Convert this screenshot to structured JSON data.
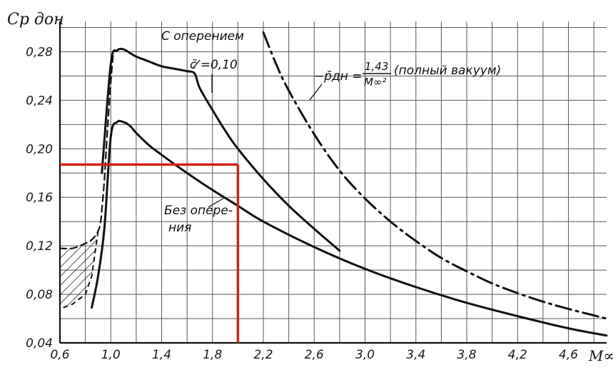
{
  "chart_data": {
    "type": "line",
    "ylabel": "Cp дон",
    "xlabel": "M∞",
    "xlim": [
      0.6,
      4.9
    ],
    "ylim": [
      0.04,
      0.305
    ],
    "grid": true,
    "x_ticks": [
      "0,6",
      "1,0",
      "1,4",
      "1,8",
      "2,2",
      "2,6",
      "3,0",
      "3,4",
      "3,8",
      "4,2",
      "4,6"
    ],
    "x_tick_values": [
      0.6,
      1.0,
      1.4,
      1.8,
      2.2,
      2.6,
      3.0,
      3.4,
      3.8,
      4.2,
      4.6
    ],
    "y_ticks": [
      "0,04",
      "0,08",
      "0,12",
      "0,16",
      "0,20",
      "0,24",
      "0,28"
    ],
    "y_tick_values": [
      0.04,
      0.08,
      0.12,
      0.16,
      0.2,
      0.24,
      0.28
    ],
    "series": [
      {
        "name": "С оперением c̄=0,10",
        "style": "solid",
        "x": [
          0.93,
          1.0,
          1.05,
          1.1,
          1.15,
          1.2,
          1.3,
          1.4,
          1.5,
          1.6,
          1.66,
          1.7,
          1.8,
          1.9,
          2.0,
          2.2,
          2.4,
          2.6,
          2.8
        ],
        "y": [
          0.18,
          0.27,
          0.281,
          0.282,
          0.279,
          0.276,
          0.272,
          0.268,
          0.266,
          0.264,
          0.262,
          0.25,
          0.232,
          0.215,
          0.2,
          0.175,
          0.153,
          0.134,
          0.116
        ]
      },
      {
        "name": "Без оперения",
        "style": "solid",
        "x": [
          0.85,
          0.9,
          0.95,
          1.0,
          1.05,
          1.1,
          1.15,
          1.2,
          1.3,
          1.4,
          1.6,
          1.8,
          2.0,
          2.2,
          2.6,
          3.0,
          3.4,
          3.8,
          4.2,
          4.6,
          4.9
        ],
        "y": [
          0.069,
          0.095,
          0.135,
          0.21,
          0.222,
          0.222,
          0.219,
          0.213,
          0.203,
          0.195,
          0.18,
          0.166,
          0.153,
          0.14,
          0.119,
          0.101,
          0.086,
          0.073,
          0.062,
          0.052,
          0.046
        ]
      },
      {
        "name": "−p̄дн = 1,43/M∞² (полный вакуум)",
        "style": "dash-dot",
        "x": [
          2.2,
          2.3,
          2.4,
          2.6,
          2.8,
          3.0,
          3.2,
          3.4,
          3.6,
          3.8,
          4.0,
          4.2,
          4.4,
          4.6,
          4.9
        ],
        "y": [
          0.296,
          0.27,
          0.248,
          0.212,
          0.182,
          0.159,
          0.14,
          0.124,
          0.11,
          0.099,
          0.089,
          0.081,
          0.074,
          0.068,
          0.06
        ]
      },
      {
        "name": "dashed boundary",
        "style": "dashed",
        "x": [
          0.6,
          0.7,
          0.8,
          0.85,
          0.9,
          0.92,
          0.93,
          0.95,
          0.97,
          1.0,
          1.02
        ],
        "y": [
          0.118,
          0.118,
          0.122,
          0.125,
          0.132,
          0.14,
          0.15,
          0.175,
          0.21,
          0.255,
          0.28
        ]
      }
    ],
    "hatched_region": {
      "upper": [
        [
          0.6,
          0.118
        ],
        [
          0.7,
          0.118
        ],
        [
          0.8,
          0.122
        ],
        [
          0.85,
          0.125
        ],
        [
          0.9,
          0.132
        ]
      ],
      "lower": [
        [
          0.9,
          0.132
        ],
        [
          0.85,
          0.095
        ],
        [
          0.8,
          0.08
        ],
        [
          0.7,
          0.072
        ],
        [
          0.6,
          0.068
        ]
      ]
    },
    "annotations": {
      "with_tail_1": "С оперением",
      "with_tail_2": "c̄ =0,10",
      "without_tail_1": "Без опере-",
      "without_tail_2": "ния",
      "vacuum_lhs": "−p̄дн =",
      "vacuum_num": "1,43",
      "vacuum_den": "M∞²",
      "vacuum_note": "(полный вакуум)"
    },
    "red_marker": {
      "x": 2.0,
      "y": 0.187,
      "color": "#d42020"
    },
    "colors": {
      "ink": "#111111",
      "grid": "#555555",
      "marker": "#d42020"
    }
  }
}
